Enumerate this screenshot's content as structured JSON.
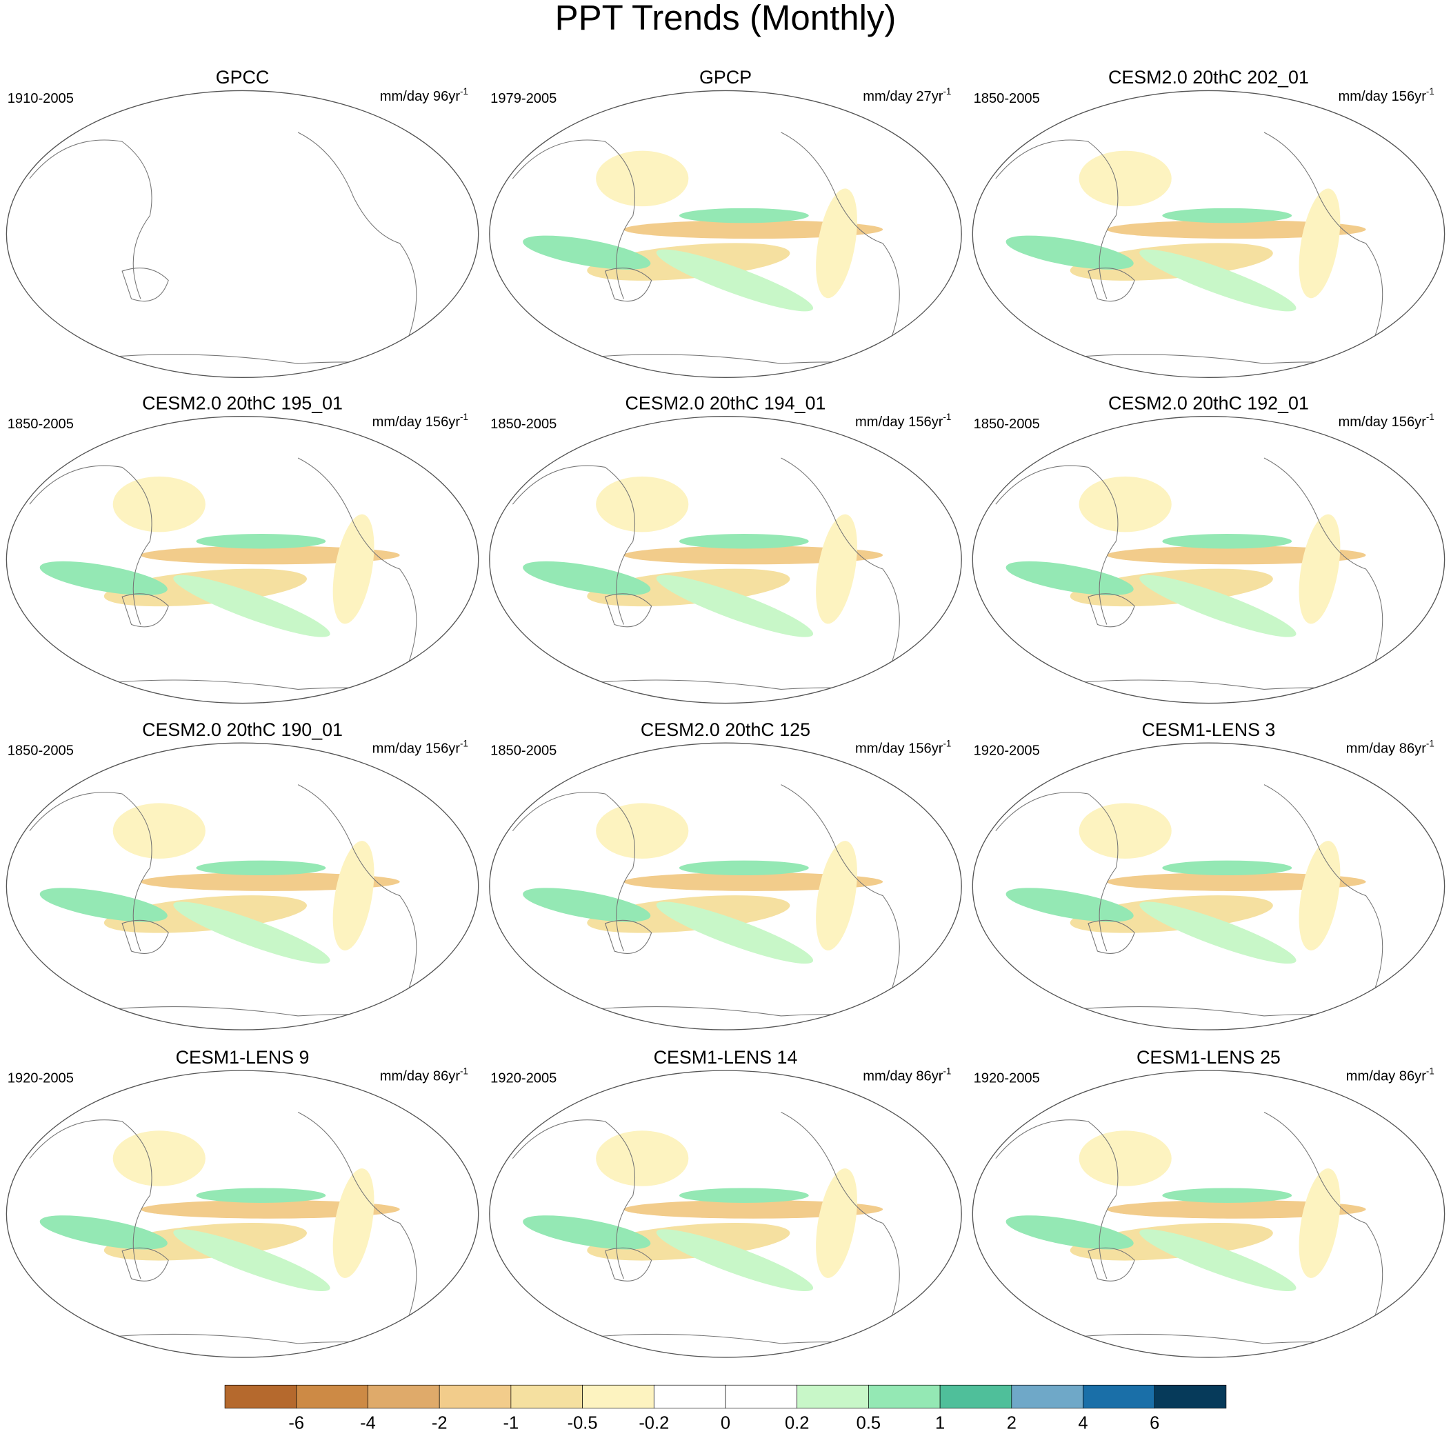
{
  "title": "PPT Trends (Monthly)",
  "panels": [
    {
      "title": "GPCC",
      "period": "1910-2005",
      "units": "mm/day 96yr",
      "units_exp": "-1"
    },
    {
      "title": "GPCP",
      "period": "1979-2005",
      "units": "mm/day 27yr",
      "units_exp": "-1"
    },
    {
      "title": "CESM2.0 20thC 202_01",
      "period": "1850-2005",
      "units": "mm/day 156yr",
      "units_exp": "-1"
    },
    {
      "title": "CESM2.0 20thC 195_01",
      "period": "1850-2005",
      "units": "mm/day 156yr",
      "units_exp": "-1"
    },
    {
      "title": "CESM2.0 20thC 194_01",
      "period": "1850-2005",
      "units": "mm/day 156yr",
      "units_exp": "-1"
    },
    {
      "title": "CESM2.0 20thC 192_01",
      "period": "1850-2005",
      "units": "mm/day 156yr",
      "units_exp": "-1"
    },
    {
      "title": "CESM2.0 20thC 190_01",
      "period": "1850-2005",
      "units": "mm/day 156yr",
      "units_exp": "-1"
    },
    {
      "title": "CESM2.0 20thC 125",
      "period": "1850-2005",
      "units": "mm/day 156yr",
      "units_exp": "-1"
    },
    {
      "title": "CESM1-LENS 3",
      "period": "1920-2005",
      "units": "mm/day 86yr",
      "units_exp": "-1"
    },
    {
      "title": "CESM1-LENS 9",
      "period": "1920-2005",
      "units": "mm/day 86yr",
      "units_exp": "-1"
    },
    {
      "title": "CESM1-LENS 14",
      "period": "1920-2005",
      "units": "mm/day 86yr",
      "units_exp": "-1"
    },
    {
      "title": "CESM1-LENS 25",
      "period": "1920-2005",
      "units": "mm/day 86yr",
      "units_exp": "-1"
    }
  ],
  "colorbar": {
    "colors": [
      "#b5692d",
      "#cd8a45",
      "#dfaa6a",
      "#f2cc8b",
      "#f5e0a0",
      "#fdf3c0",
      "#ffffff",
      "#ffffff",
      "#c8f7c8",
      "#94e8b4",
      "#4fbf9a",
      "#6fa8c8",
      "#1a6fa8",
      "#063a5a"
    ],
    "labels": [
      -6,
      -4,
      -2,
      -1,
      -0.5,
      -0.2,
      0,
      0.2,
      0.5,
      1,
      2,
      4,
      6
    ]
  }
}
